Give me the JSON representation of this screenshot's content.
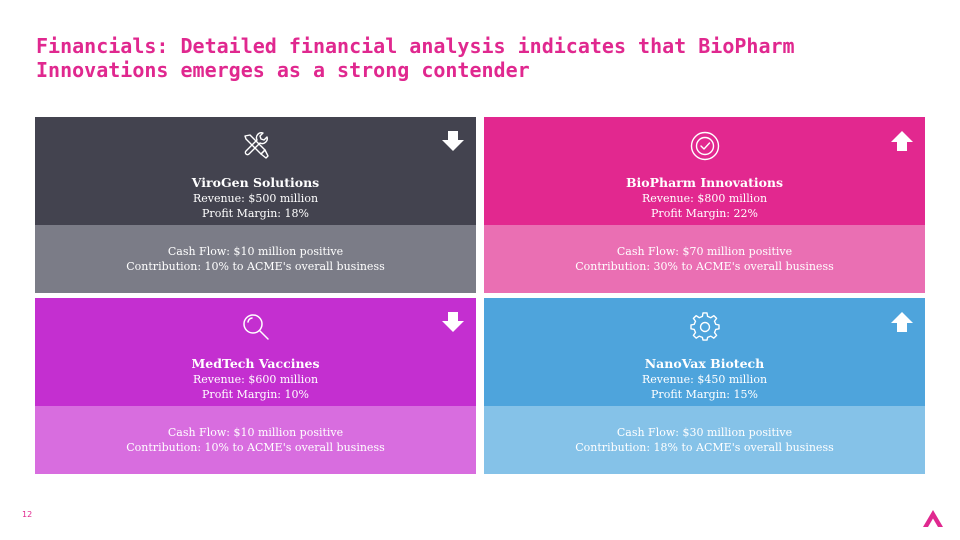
{
  "title": "Financials: Detailed financial analysis indicates that BioPharm Innovations emerges as a strong contender",
  "page_number": "12",
  "colors": {
    "title": "#e0288f",
    "virogen_top": "#43434f",
    "virogen_bottom": "#7b7c87",
    "biopharm_top": "#e2288f",
    "biopharm_bottom": "#ea6fb3",
    "medtech_top": "#c42fd0",
    "medtech_bottom": "#d86ddf",
    "nanovax_top": "#4ea4dc",
    "nanovax_bottom": "#85c2e8"
  },
  "cards": [
    {
      "name": "ViroGen Solutions",
      "revenue": "Revenue: $500 million",
      "profit_margin": "Profit Margin: 18%",
      "cash_flow": "Cash Flow: $10 million positive",
      "contribution": "Contribution: 10% to ACME's overall business",
      "icon": "tools-icon",
      "trend": "down"
    },
    {
      "name": "BioPharm Innovations",
      "revenue": "Revenue: $800 million",
      "profit_margin": "Profit Margin: 22%",
      "cash_flow": "Cash Flow: $70 million positive",
      "contribution": "Contribution: 30% to ACME's overall business",
      "icon": "badge-check-icon",
      "trend": "up"
    },
    {
      "name": "MedTech Vaccines",
      "revenue": "Revenue: $600 million",
      "profit_margin": "Profit Margin: 10%",
      "cash_flow": "Cash Flow: $10 million positive",
      "contribution": "Contribution: 10% to ACME's overall business",
      "icon": "magnifier-icon",
      "trend": "down"
    },
    {
      "name": "NanoVax Biotech",
      "revenue": "Revenue: $450 million",
      "profit_margin": "Profit Margin: 15%",
      "cash_flow": "Cash Flow: $30 million positive",
      "contribution": "Contribution: 18% to ACME's overall business",
      "icon": "gear-icon",
      "trend": "up"
    }
  ]
}
